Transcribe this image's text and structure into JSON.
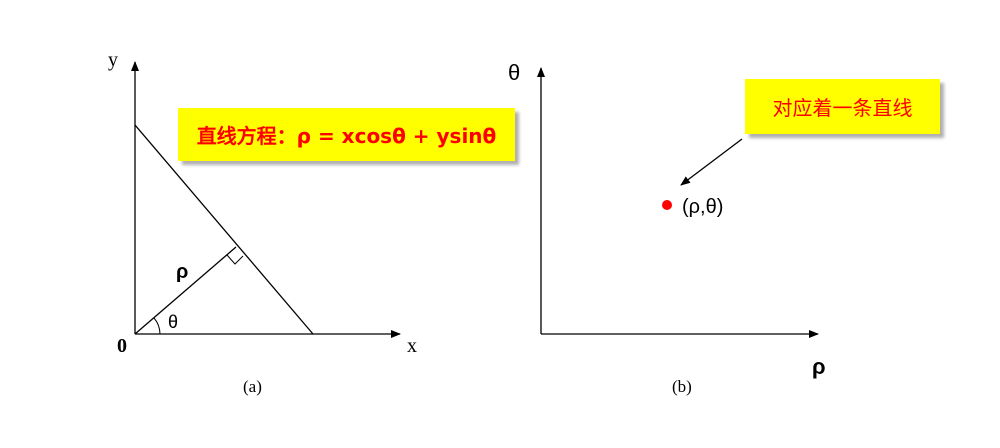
{
  "diagram_a": {
    "axis_y_label": "y",
    "axis_x_label": "x",
    "origin_label": "0",
    "rho_label": "ρ",
    "theta_label": "θ",
    "equation": "直线方程：ρ = xcosθ + ysinθ",
    "caption": "(a)"
  },
  "diagram_b": {
    "axis_theta_label": "θ",
    "axis_rho_label": "ρ",
    "point_label": "(ρ,θ)",
    "note": "对应着一条直线",
    "caption": "(b)"
  },
  "colors": {
    "callout_bg": "#ffff00",
    "callout_text": "#ff0000",
    "point": "#ff0000",
    "line": "#000000"
  }
}
